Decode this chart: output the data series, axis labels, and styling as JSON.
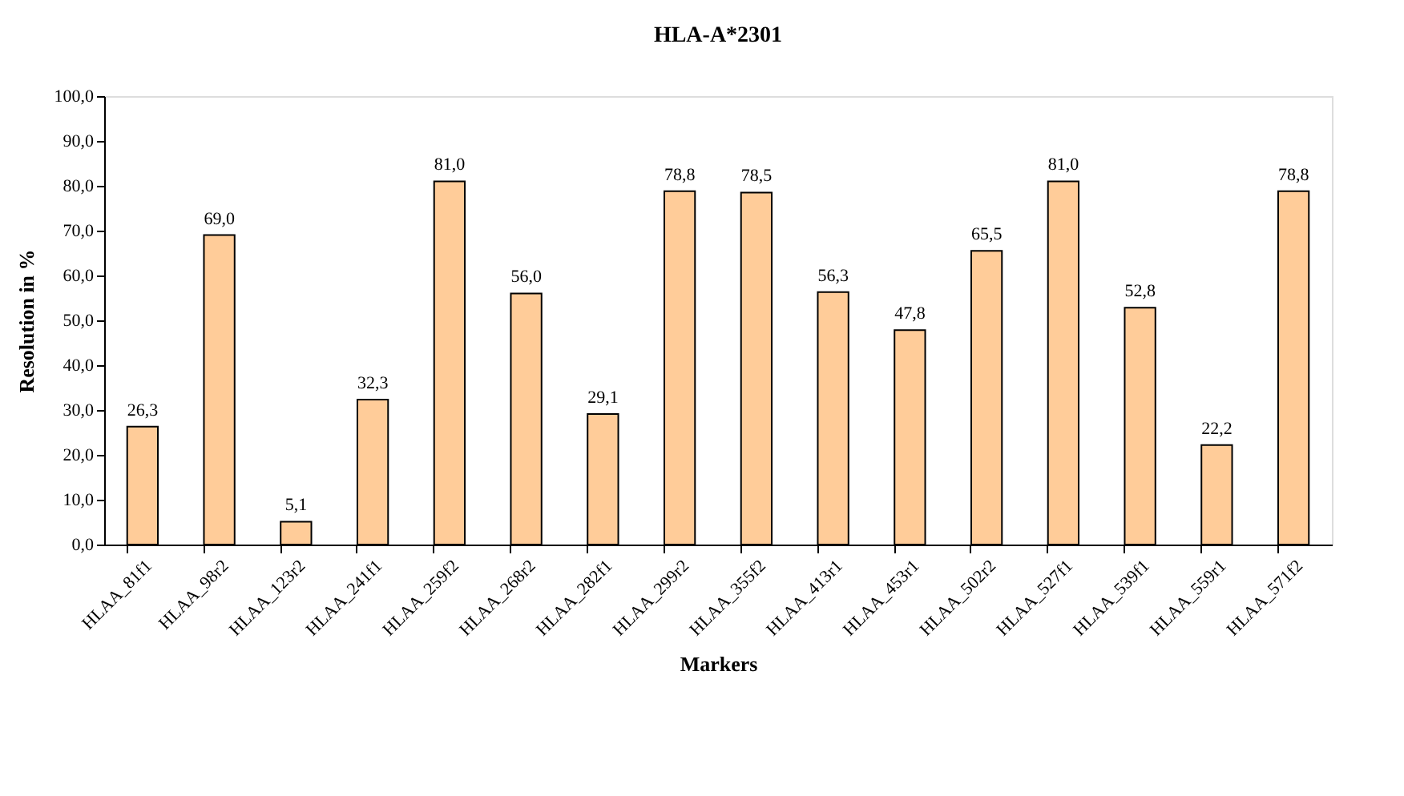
{
  "chart_data": {
    "type": "bar",
    "title": "HLA-A*2301",
    "xlabel": "Markers",
    "ylabel": "Resolution in %",
    "categories": [
      "HLAA_81f1",
      "HLAA_98r2",
      "HLAA_123r2",
      "HLAA_241f1",
      "HLAA_259f2",
      "HLAA_268r2",
      "HLAA_282f1",
      "HLAA_299r2",
      "HLAA_355f2",
      "HLAA_413r1",
      "HLAA_453r1",
      "HLAA_502r2",
      "HLAA_527f1",
      "HLAA_539f1",
      "HLAA_559r1",
      "HLAA_571f2"
    ],
    "values": [
      26.3,
      69.0,
      5.1,
      32.3,
      81.0,
      56.0,
      29.1,
      78.8,
      78.5,
      56.3,
      47.8,
      65.5,
      81.0,
      52.8,
      22.2,
      78.8
    ],
    "value_labels": [
      "26,3",
      "69,0",
      "5,1",
      "32,3",
      "81,0",
      "56,0",
      "29,1",
      "78,8",
      "78,5",
      "56,3",
      "47,8",
      "65,5",
      "81,0",
      "52,8",
      "22,2",
      "78,8"
    ],
    "color": "#ffcc99",
    "ylim": [
      0,
      100
    ],
    "yticks": [
      {
        "value": 0,
        "label": "0,0"
      },
      {
        "value": 10,
        "label": "10,0"
      },
      {
        "value": 20,
        "label": "20,0"
      },
      {
        "value": 30,
        "label": "30,0"
      },
      {
        "value": 40,
        "label": "40,0"
      },
      {
        "value": 50,
        "label": "50,0"
      },
      {
        "value": 60,
        "label": "60,0"
      },
      {
        "value": 70,
        "label": "70,0"
      },
      {
        "value": 80,
        "label": "80,0"
      },
      {
        "value": 90,
        "label": "90,0"
      },
      {
        "value": 100,
        "label": "100,0"
      }
    ],
    "grid": false
  }
}
